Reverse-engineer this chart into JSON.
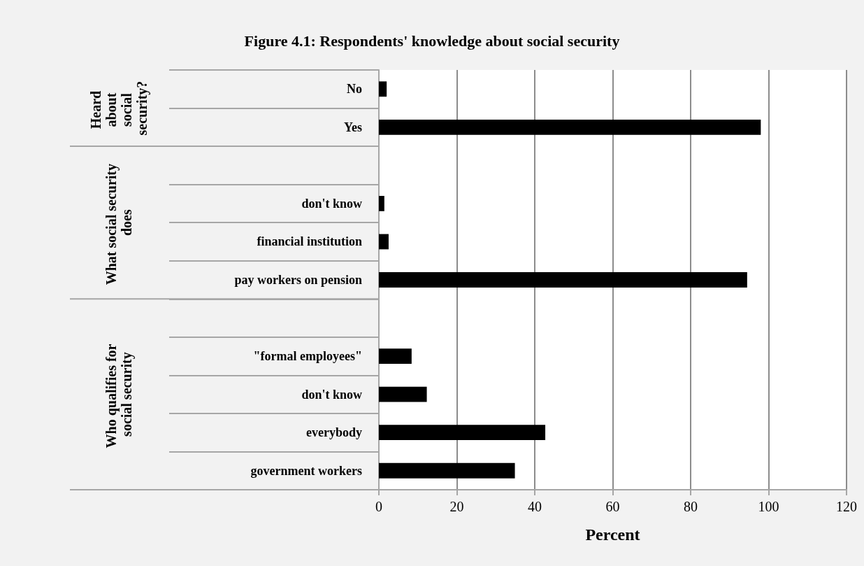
{
  "chart_data": {
    "type": "bar",
    "orientation": "horizontal",
    "title": "Figure 4.1: Respondents' knowledge about social security",
    "xlabel": "Percent",
    "categories": [
      "No",
      "Yes",
      null,
      "don't know",
      "financial institution",
      "pay workers on pension",
      null,
      "\"formal employees\"",
      "don't know",
      "everybody",
      "government workers"
    ],
    "values": [
      2.0,
      98.0,
      null,
      1.4,
      2.5,
      94.5,
      null,
      8.4,
      12.3,
      42.7,
      34.9
    ],
    "color": "#000000",
    "xlim": [
      0,
      120
    ],
    "xticks": [
      0,
      20,
      40,
      60,
      80,
      100,
      120
    ],
    "grid": "x",
    "annotations": [
      "Heard about social security?",
      "What social security does",
      "Who qualifies for social security"
    ]
  }
}
